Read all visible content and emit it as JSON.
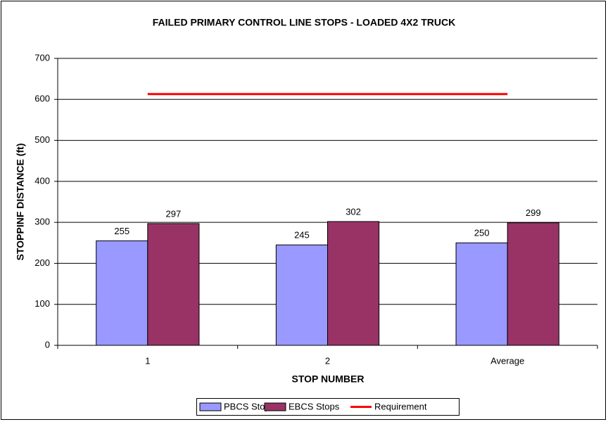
{
  "chart_data": {
    "type": "bar",
    "title": "FAILED PRIMARY CONTROL LINE STOPS - LOADED 4X2 TRUCK",
    "x_label": "STOP NUMBER",
    "y_label": "STOPPINF DISTANCE (ft)",
    "categories": [
      "1",
      "2",
      "Average"
    ],
    "series": [
      {
        "name": "PBCS Stops",
        "color": "#9999ff",
        "values": [
          255,
          245,
          250
        ]
      },
      {
        "name": "EBCS Stops",
        "color": "#993366",
        "values": [
          297,
          302,
          299
        ]
      },
      {
        "name": "Requirement",
        "type": "line",
        "color": "#ff0000",
        "values": [
          613,
          613,
          613
        ]
      }
    ],
    "ylim": [
      0,
      700
    ],
    "yticks": [
      0,
      100,
      200,
      300,
      400,
      500,
      600,
      700
    ],
    "grid": true,
    "legend": "bottom"
  }
}
